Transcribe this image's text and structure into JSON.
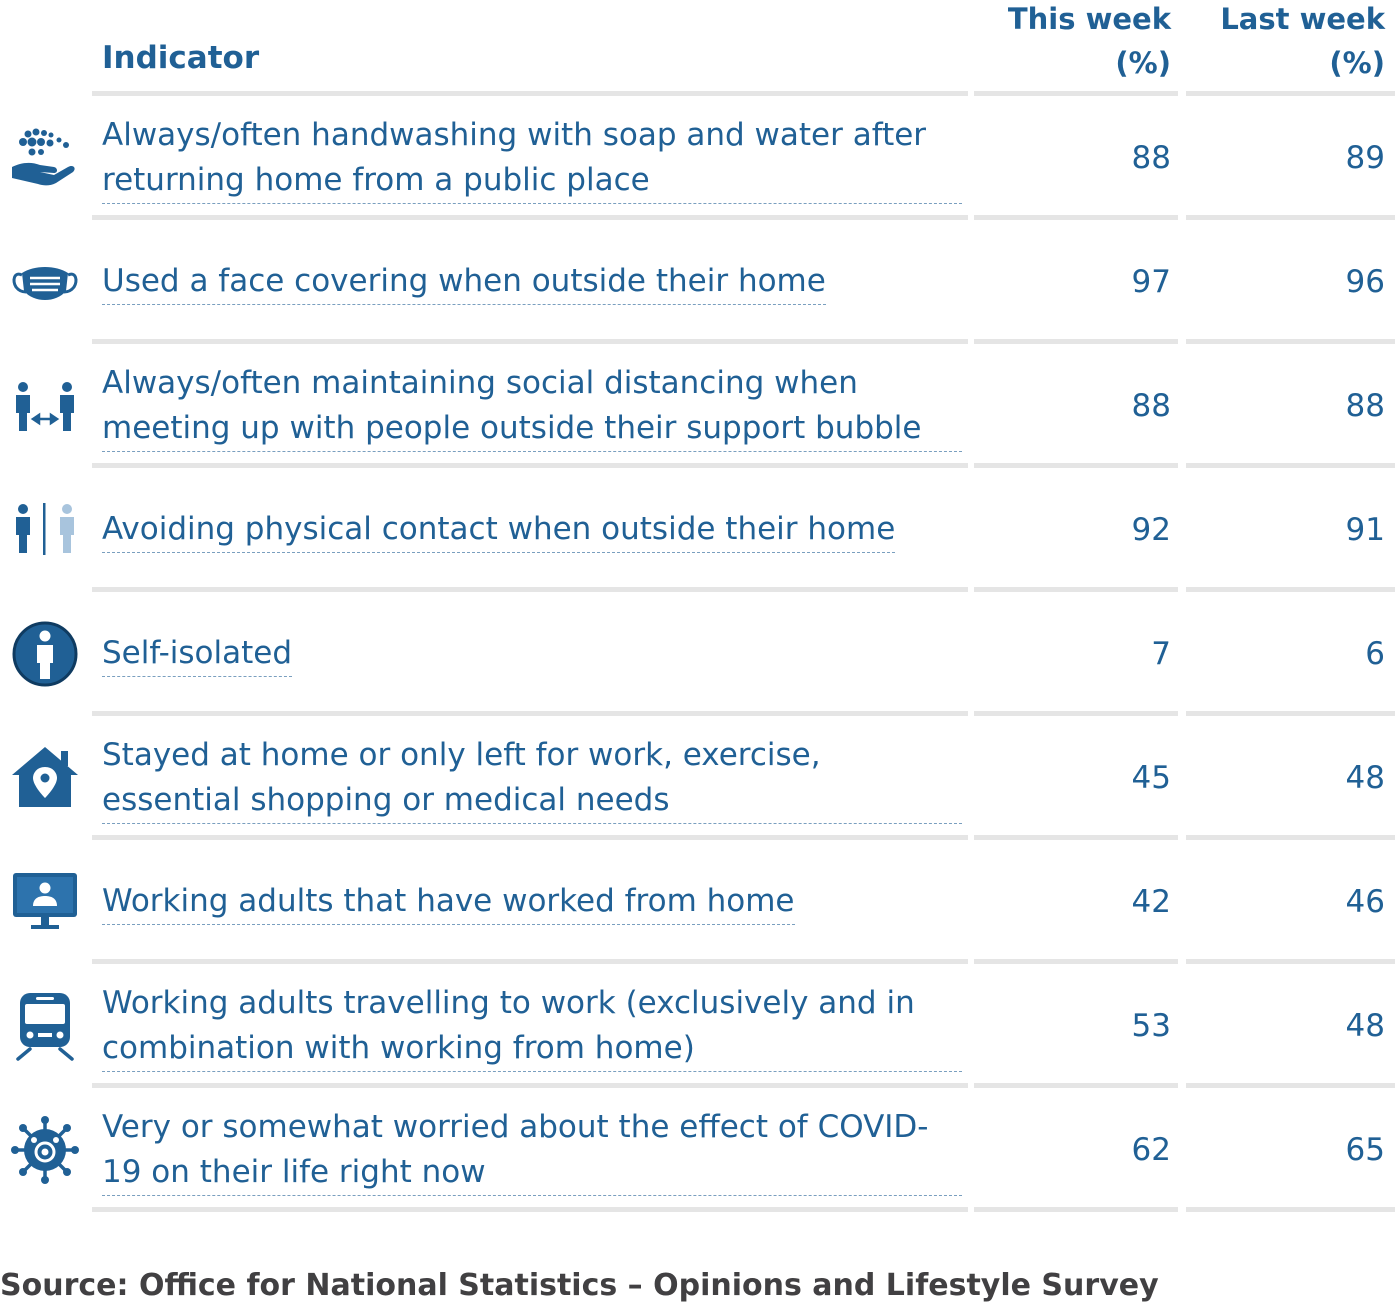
{
  "chart_data": {
    "type": "table",
    "columns": [
      "Indicator",
      "This week (%)",
      "Last week (%)"
    ],
    "header": {
      "indicator": "Indicator",
      "this_week_line1": "This week",
      "this_week_line2": "(%)",
      "last_week_line1": "Last week",
      "last_week_line2": "(%)"
    },
    "rows": [
      {
        "icon": "handwashing-icon",
        "indicator": "Always/often handwashing with soap and water after returning home from a public place",
        "this_week": 88,
        "last_week": 89
      },
      {
        "icon": "face-mask-icon",
        "indicator": "Used a face covering when outside their home",
        "this_week": 97,
        "last_week": 96
      },
      {
        "icon": "social-distancing-icon",
        "indicator": "Always/often maintaining social distancing when meeting up with people outside their support bubble",
        "this_week": 88,
        "last_week": 88
      },
      {
        "icon": "avoid-contact-icon",
        "indicator": "Avoiding physical contact when outside their home",
        "this_week": 92,
        "last_week": 91
      },
      {
        "icon": "self-isolated-icon",
        "indicator": "Self-isolated",
        "this_week": 7,
        "last_week": 6
      },
      {
        "icon": "home-location-icon",
        "indicator": "Stayed at home or only left for work, exercise, essential shopping or medical needs",
        "this_week": 45,
        "last_week": 48
      },
      {
        "icon": "computer-monitor-icon",
        "indicator": "Working adults that have worked from home",
        "this_week": 42,
        "last_week": 46
      },
      {
        "icon": "train-icon",
        "indicator": "Working adults travelling to work (exclusively and in combination with working from home)",
        "this_week": 53,
        "last_week": 48
      },
      {
        "icon": "virus-icon",
        "indicator": "Very or somewhat worried about the effect of COVID-19 on their life right now",
        "this_week": 62,
        "last_week": 65
      }
    ],
    "source": "Source: Office for National Statistics – Opinions and Lifestyle Survey"
  },
  "colors": {
    "text": "#206095",
    "rule": "#e5e5e5",
    "source_text": "#414042",
    "icon_light": "#a8c4dd"
  }
}
